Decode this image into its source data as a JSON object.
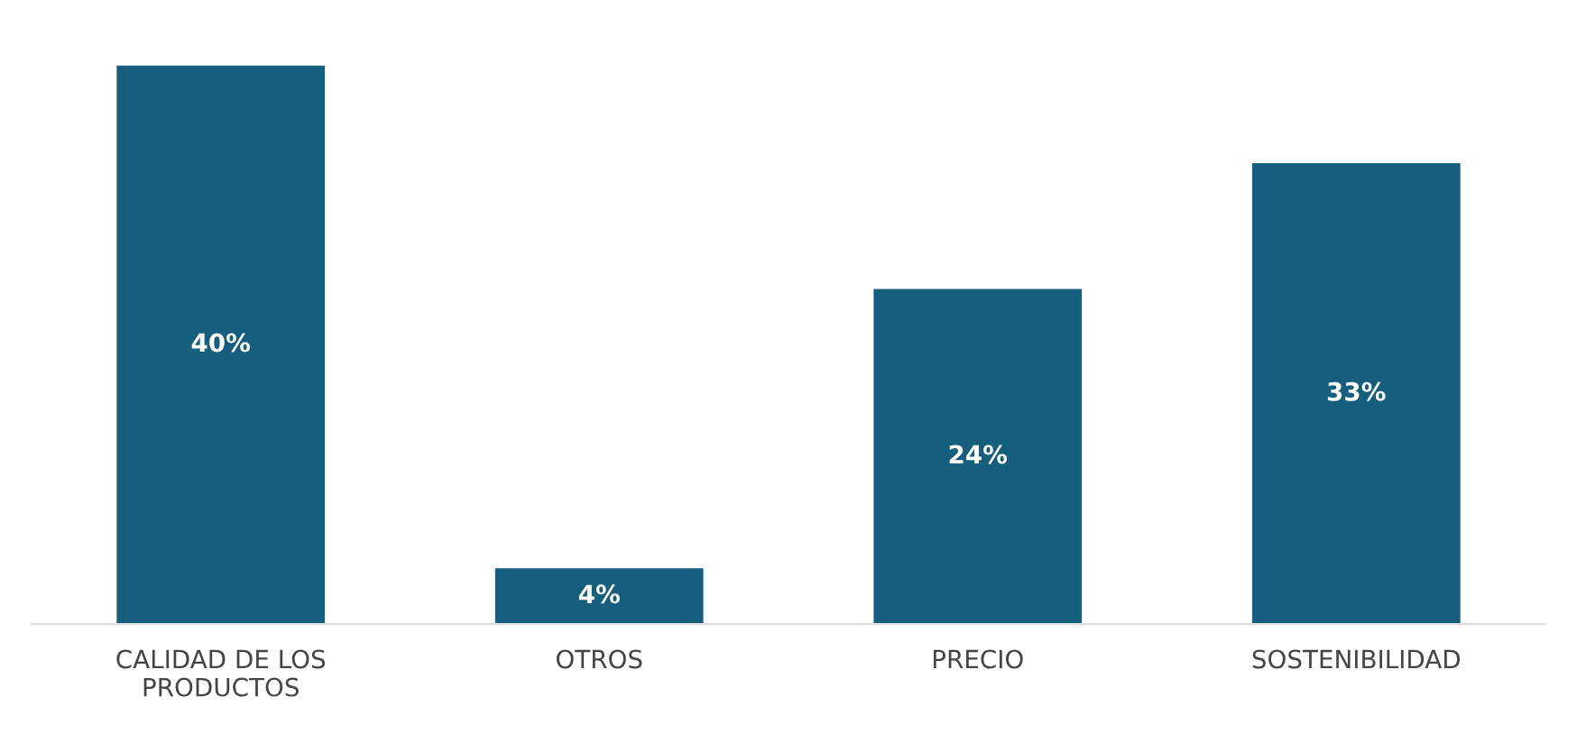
{
  "chart_data": {
    "type": "bar",
    "categories": [
      "CALIDAD DE LOS\nPRODUCTOS",
      "OTROS",
      "PRECIO",
      "SOSTENIBILIDAD"
    ],
    "values": [
      40,
      4,
      24,
      33
    ],
    "value_labels": [
      "40%",
      "4%",
      "24%",
      "33%"
    ],
    "color": "#165e7e"
  }
}
